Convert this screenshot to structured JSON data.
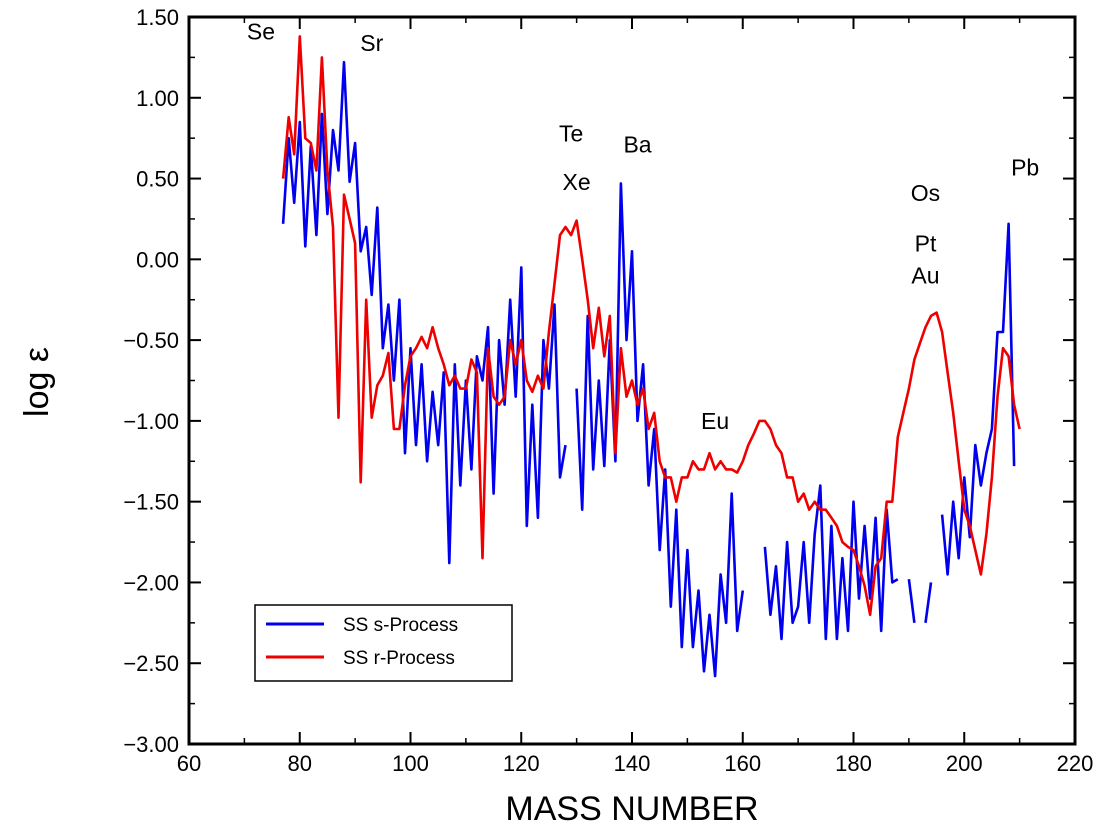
{
  "chart_data": {
    "type": "line",
    "xlabel": "MASS NUMBER",
    "ylabel": "log ε",
    "xlim": [
      60,
      220
    ],
    "ylim": [
      -3.0,
      1.5
    ],
    "x_ticks": [
      60,
      80,
      100,
      120,
      140,
      160,
      180,
      200,
      220
    ],
    "y_ticks": [
      1.5,
      1.0,
      0.5,
      0.0,
      -0.5,
      -1.0,
      -1.5,
      -2.0,
      -2.5,
      -3.0
    ],
    "y_tick_labels": [
      "1.50",
      "1.00",
      "0.50",
      "0.00",
      "-0.50",
      "-1.00",
      "-1.50",
      "-2.00",
      "-2.50",
      "-3.00"
    ],
    "grid": false,
    "legend_position": "bottom-left",
    "annotations": [
      {
        "text": "Se",
        "x": 73,
        "y": 1.36
      },
      {
        "text": "Sr",
        "x": 93,
        "y": 1.29
      },
      {
        "text": "Te",
        "x": 129,
        "y": 0.73
      },
      {
        "text": "Xe",
        "x": 130,
        "y": 0.43
      },
      {
        "text": "Ba",
        "x": 141,
        "y": 0.66
      },
      {
        "text": "Eu",
        "x": 155,
        "y": -1.05
      },
      {
        "text": "Os",
        "x": 193,
        "y": 0.36
      },
      {
        "text": "Pt",
        "x": 193,
        "y": 0.05
      },
      {
        "text": "Au",
        "x": 193,
        "y": -0.15
      },
      {
        "text": "Pb",
        "x": 211,
        "y": 0.52
      }
    ],
    "series": [
      {
        "name": "SS s-Process",
        "color": "#0000ee",
        "points": [
          [
            77,
            0.22
          ],
          [
            78,
            0.75
          ],
          [
            79,
            0.35
          ],
          [
            80,
            0.85
          ],
          [
            81,
            0.08
          ],
          [
            82,
            0.7
          ],
          [
            83,
            0.15
          ],
          [
            84,
            0.9
          ],
          [
            85,
            0.28
          ],
          [
            86,
            0.8
          ],
          [
            87,
            0.55
          ],
          [
            88,
            1.22
          ],
          [
            89,
            0.48
          ],
          [
            90,
            0.72
          ],
          [
            91,
            0.05
          ],
          [
            92,
            0.2
          ],
          [
            93,
            -0.22
          ],
          [
            94,
            0.32
          ],
          [
            95,
            -0.55
          ],
          [
            96,
            -0.28
          ],
          [
            97,
            -0.75
          ],
          [
            98,
            -0.25
          ],
          [
            99,
            -1.2
          ],
          [
            100,
            -0.55
          ],
          [
            101,
            -1.15
          ],
          [
            102,
            -0.65
          ],
          [
            103,
            -1.25
          ],
          [
            104,
            -0.82
          ],
          [
            105,
            -1.15
          ],
          [
            106,
            -0.7
          ],
          [
            107,
            -1.88
          ],
          [
            108,
            -0.65
          ],
          [
            109,
            -1.4
          ],
          [
            110,
            -0.75
          ],
          [
            111,
            -1.3
          ],
          [
            112,
            -0.6
          ],
          [
            113,
            -0.75
          ],
          [
            114,
            -0.42
          ],
          [
            115,
            -1.45
          ],
          [
            116,
            -0.5
          ],
          [
            117,
            -0.9
          ],
          [
            118,
            -0.25
          ],
          [
            119,
            -0.85
          ],
          [
            120,
            -0.05
          ],
          [
            121,
            -1.65
          ],
          [
            122,
            -0.9
          ],
          [
            123,
            -1.6
          ],
          [
            124,
            -0.5
          ],
          [
            125,
            -0.8
          ],
          [
            126,
            -0.28
          ],
          [
            127,
            -1.35
          ],
          [
            128,
            -1.15
          ],
          [
            130,
            -0.8
          ],
          [
            131,
            -1.55
          ],
          [
            132,
            -0.35
          ],
          [
            133,
            -1.3
          ],
          [
            134,
            -0.75
          ],
          [
            135,
            -1.28
          ],
          [
            136,
            -0.5
          ],
          [
            137,
            -1.25
          ],
          [
            138,
            0.47
          ],
          [
            139,
            -0.5
          ],
          [
            140,
            0.05
          ],
          [
            141,
            -1.0
          ],
          [
            142,
            -0.65
          ],
          [
            143,
            -1.4
          ],
          [
            144,
            -1.05
          ],
          [
            145,
            -1.8
          ],
          [
            146,
            -1.3
          ],
          [
            147,
            -2.15
          ],
          [
            148,
            -1.55
          ],
          [
            149,
            -2.4
          ],
          [
            150,
            -1.8
          ],
          [
            151,
            -2.4
          ],
          [
            152,
            -2.05
          ],
          [
            153,
            -2.55
          ],
          [
            154,
            -2.2
          ],
          [
            155,
            -2.58
          ],
          [
            156,
            -1.95
          ],
          [
            157,
            -2.25
          ],
          [
            158,
            -1.45
          ],
          [
            159,
            -2.3
          ],
          [
            160,
            -2.05
          ],
          [
            164,
            -1.78
          ],
          [
            165,
            -2.2
          ],
          [
            166,
            -1.9
          ],
          [
            167,
            -2.35
          ],
          [
            168,
            -1.75
          ],
          [
            169,
            -2.25
          ],
          [
            170,
            -2.15
          ],
          [
            171,
            -1.75
          ],
          [
            172,
            -2.25
          ],
          [
            173,
            -1.7
          ],
          [
            174,
            -1.4
          ],
          [
            175,
            -2.35
          ],
          [
            176,
            -1.65
          ],
          [
            177,
            -2.35
          ],
          [
            178,
            -1.85
          ],
          [
            179,
            -2.3
          ],
          [
            180,
            -1.5
          ],
          [
            181,
            -2.1
          ],
          [
            182,
            -1.65
          ],
          [
            183,
            -2.1
          ],
          [
            184,
            -1.6
          ],
          [
            185,
            -2.3
          ],
          [
            186,
            -1.55
          ],
          [
            187,
            -2.0
          ],
          [
            188,
            -1.98
          ],
          [
            190,
            -1.98
          ],
          [
            191,
            -2.25
          ],
          [
            193,
            -2.25
          ],
          [
            194,
            -2.0
          ],
          [
            196,
            -1.58
          ],
          [
            197,
            -1.95
          ],
          [
            198,
            -1.5
          ],
          [
            199,
            -1.85
          ],
          [
            200,
            -1.35
          ],
          [
            201,
            -1.72
          ],
          [
            202,
            -1.15
          ],
          [
            203,
            -1.4
          ],
          [
            204,
            -1.2
          ],
          [
            205,
            -1.05
          ],
          [
            206,
            -0.45
          ],
          [
            207,
            -0.45
          ],
          [
            208,
            0.22
          ],
          [
            209,
            -1.28
          ]
        ],
        "segments": [
          [
            77,
            128
          ],
          [
            130,
            160
          ],
          [
            164,
            188
          ],
          [
            190,
            191
          ],
          [
            193,
            194
          ],
          [
            196,
            209
          ]
        ]
      },
      {
        "name": "SS r-Process",
        "color": "#ee0000",
        "points": [
          [
            77,
            0.5
          ],
          [
            78,
            0.88
          ],
          [
            79,
            0.65
          ],
          [
            80,
            1.38
          ],
          [
            81,
            0.75
          ],
          [
            82,
            0.72
          ],
          [
            83,
            0.55
          ],
          [
            84,
            1.25
          ],
          [
            85,
            0.55
          ],
          [
            86,
            0.2
          ],
          [
            87,
            -0.98
          ],
          [
            88,
            0.4
          ],
          [
            89,
            0.25
          ],
          [
            90,
            0.1
          ],
          [
            91,
            -1.38
          ],
          [
            92,
            -0.25
          ],
          [
            93,
            -0.98
          ],
          [
            94,
            -0.78
          ],
          [
            95,
            -0.72
          ],
          [
            96,
            -0.58
          ],
          [
            97,
            -1.05
          ],
          [
            98,
            -1.05
          ],
          [
            99,
            -0.78
          ],
          [
            100,
            -0.6
          ],
          [
            101,
            -0.55
          ],
          [
            102,
            -0.48
          ],
          [
            103,
            -0.55
          ],
          [
            104,
            -0.42
          ],
          [
            105,
            -0.55
          ],
          [
            106,
            -0.65
          ],
          [
            107,
            -0.78
          ],
          [
            108,
            -0.72
          ],
          [
            109,
            -0.8
          ],
          [
            110,
            -0.8
          ],
          [
            111,
            -0.62
          ],
          [
            112,
            -0.7
          ],
          [
            113,
            -1.85
          ],
          [
            114,
            -0.55
          ],
          [
            115,
            -0.85
          ],
          [
            116,
            -0.9
          ],
          [
            117,
            -0.85
          ],
          [
            118,
            -0.5
          ],
          [
            119,
            -0.65
          ],
          [
            120,
            -0.5
          ],
          [
            121,
            -0.75
          ],
          [
            122,
            -0.82
          ],
          [
            123,
            -0.72
          ],
          [
            124,
            -0.8
          ],
          [
            125,
            -0.45
          ],
          [
            126,
            -0.15
          ],
          [
            127,
            0.15
          ],
          [
            128,
            0.2
          ],
          [
            129,
            0.15
          ],
          [
            130,
            0.24
          ],
          [
            131,
            0.0
          ],
          [
            132,
            -0.25
          ],
          [
            133,
            -0.55
          ],
          [
            134,
            -0.3
          ],
          [
            135,
            -0.6
          ],
          [
            136,
            -0.35
          ],
          [
            137,
            -1.2
          ],
          [
            138,
            -0.55
          ],
          [
            139,
            -0.85
          ],
          [
            140,
            -0.75
          ],
          [
            141,
            -0.9
          ],
          [
            142,
            -0.8
          ],
          [
            143,
            -1.05
          ],
          [
            144,
            -0.95
          ],
          [
            145,
            -1.25
          ],
          [
            146,
            -1.35
          ],
          [
            147,
            -1.35
          ],
          [
            148,
            -1.5
          ],
          [
            149,
            -1.35
          ],
          [
            150,
            -1.35
          ],
          [
            151,
            -1.25
          ],
          [
            152,
            -1.3
          ],
          [
            153,
            -1.3
          ],
          [
            154,
            -1.2
          ],
          [
            155,
            -1.3
          ],
          [
            156,
            -1.25
          ],
          [
            157,
            -1.3
          ],
          [
            158,
            -1.3
          ],
          [
            159,
            -1.32
          ],
          [
            160,
            -1.25
          ],
          [
            161,
            -1.15
          ],
          [
            162,
            -1.08
          ],
          [
            163,
            -1.0
          ],
          [
            164,
            -1.0
          ],
          [
            165,
            -1.05
          ],
          [
            166,
            -1.15
          ],
          [
            167,
            -1.2
          ],
          [
            168,
            -1.35
          ],
          [
            169,
            -1.35
          ],
          [
            170,
            -1.5
          ],
          [
            171,
            -1.45
          ],
          [
            172,
            -1.55
          ],
          [
            173,
            -1.5
          ],
          [
            174,
            -1.55
          ],
          [
            175,
            -1.55
          ],
          [
            176,
            -1.6
          ],
          [
            177,
            -1.65
          ],
          [
            178,
            -1.75
          ],
          [
            179,
            -1.78
          ],
          [
            180,
            -1.8
          ],
          [
            181,
            -1.9
          ],
          [
            182,
            -2.02
          ],
          [
            183,
            -2.2
          ],
          [
            184,
            -1.9
          ],
          [
            185,
            -1.85
          ],
          [
            186,
            -1.5
          ],
          [
            187,
            -1.5
          ],
          [
            188,
            -1.1
          ],
          [
            189,
            -0.95
          ],
          [
            190,
            -0.8
          ],
          [
            191,
            -0.62
          ],
          [
            192,
            -0.52
          ],
          [
            193,
            -0.42
          ],
          [
            194,
            -0.35
          ],
          [
            195,
            -0.33
          ],
          [
            196,
            -0.45
          ],
          [
            197,
            -0.7
          ],
          [
            198,
            -0.95
          ],
          [
            199,
            -1.25
          ],
          [
            200,
            -1.55
          ],
          [
            201,
            -1.65
          ],
          [
            202,
            -1.8
          ],
          [
            203,
            -1.95
          ],
          [
            204,
            -1.7
          ],
          [
            205,
            -1.35
          ],
          [
            206,
            -0.85
          ],
          [
            207,
            -0.55
          ],
          [
            208,
            -0.6
          ],
          [
            209,
            -0.9
          ],
          [
            210,
            -1.05
          ]
        ],
        "segments": [
          [
            77,
            210
          ]
        ]
      }
    ]
  }
}
